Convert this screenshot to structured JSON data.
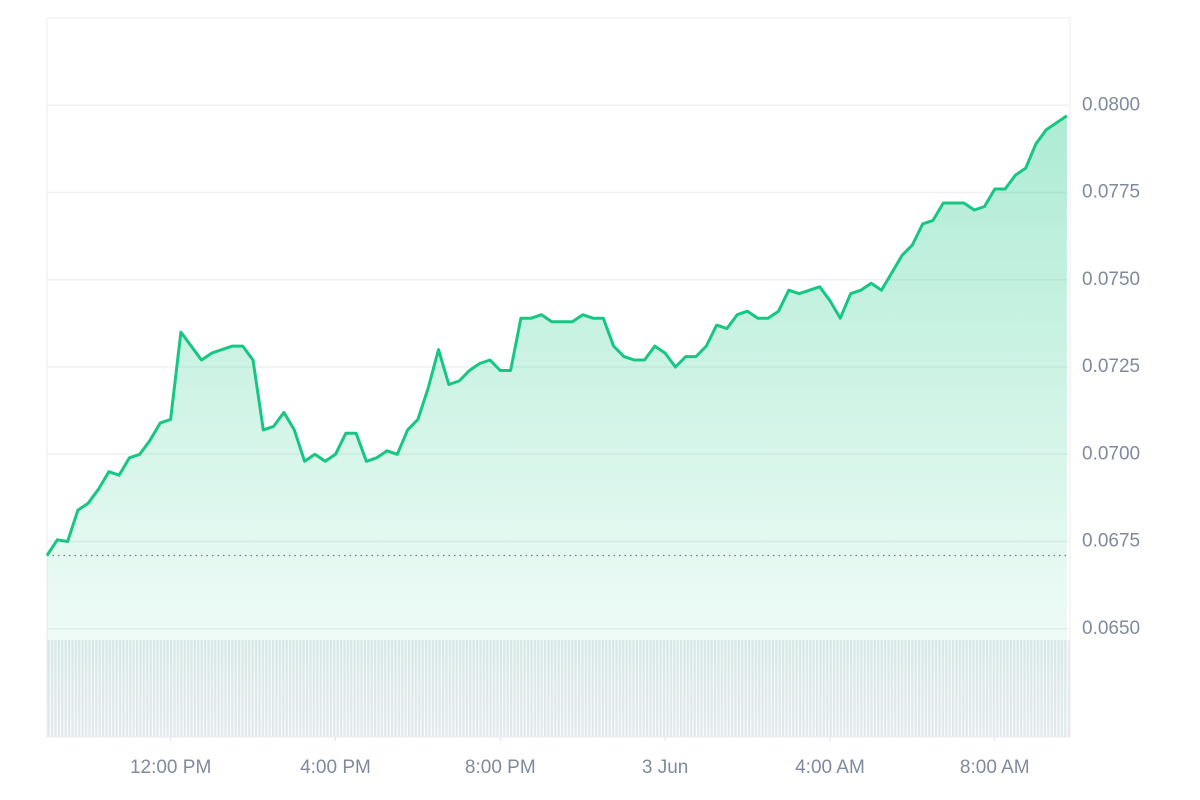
{
  "chart_data": {
    "type": "line",
    "values": [
      0.0671,
      0.06755,
      0.0675,
      0.0684,
      0.0686,
      0.069,
      0.0695,
      0.0694,
      0.0699,
      0.07,
      0.0704,
      0.0709,
      0.071,
      0.0735,
      0.0731,
      0.0727,
      0.0729,
      0.073,
      0.0731,
      0.0731,
      0.0727,
      0.0707,
      0.0708,
      0.0712,
      0.0707,
      0.0698,
      0.07,
      0.0698,
      0.07,
      0.0706,
      0.0706,
      0.0698,
      0.0699,
      0.0701,
      0.07,
      0.0707,
      0.071,
      0.0719,
      0.073,
      0.072,
      0.0721,
      0.0724,
      0.0726,
      0.0727,
      0.0724,
      0.0724,
      0.0739,
      0.0739,
      0.074,
      0.0738,
      0.0738,
      0.0738,
      0.074,
      0.0739,
      0.0739,
      0.0731,
      0.0728,
      0.0727,
      0.0727,
      0.0731,
      0.0729,
      0.0725,
      0.0728,
      0.0728,
      0.0731,
      0.0737,
      0.0736,
      0.074,
      0.0741,
      0.0739,
      0.0739,
      0.0741,
      0.0747,
      0.0746,
      0.0747,
      0.0748,
      0.0744,
      0.0739,
      0.0746,
      0.0747,
      0.0749,
      0.0747,
      0.0752,
      0.0757,
      0.076,
      0.0766,
      0.0767,
      0.0772,
      0.0772,
      0.0772,
      0.077,
      0.0771,
      0.0776,
      0.0776,
      0.078,
      0.0782,
      0.0789,
      0.0793,
      0.0795,
      0.0797
    ],
    "color": "#16c784",
    "reference_line": 0.0671,
    "xlim": [
      0,
      99.3
    ],
    "xticks": [
      {
        "value": 12,
        "label": "12:00 PM"
      },
      {
        "value": 28,
        "label": "4:00 PM"
      },
      {
        "value": 44,
        "label": "8:00 PM"
      },
      {
        "value": 60,
        "label": "3 Jun"
      },
      {
        "value": 76,
        "label": "4:00 AM"
      },
      {
        "value": 92,
        "label": "8:00 AM"
      }
    ],
    "ylim": [
      0.0619,
      0.0825
    ],
    "yticks": [
      {
        "value": 0.065,
        "label": "0.0650"
      },
      0.0675,
      {
        "value": 0.07,
        "label": "0.0700"
      },
      0.0725,
      {
        "value": 0.075,
        "label": "0.0750"
      },
      0.0775,
      {
        "value": 0.08,
        "label": "0.0800"
      }
    ],
    "grid": true
  }
}
